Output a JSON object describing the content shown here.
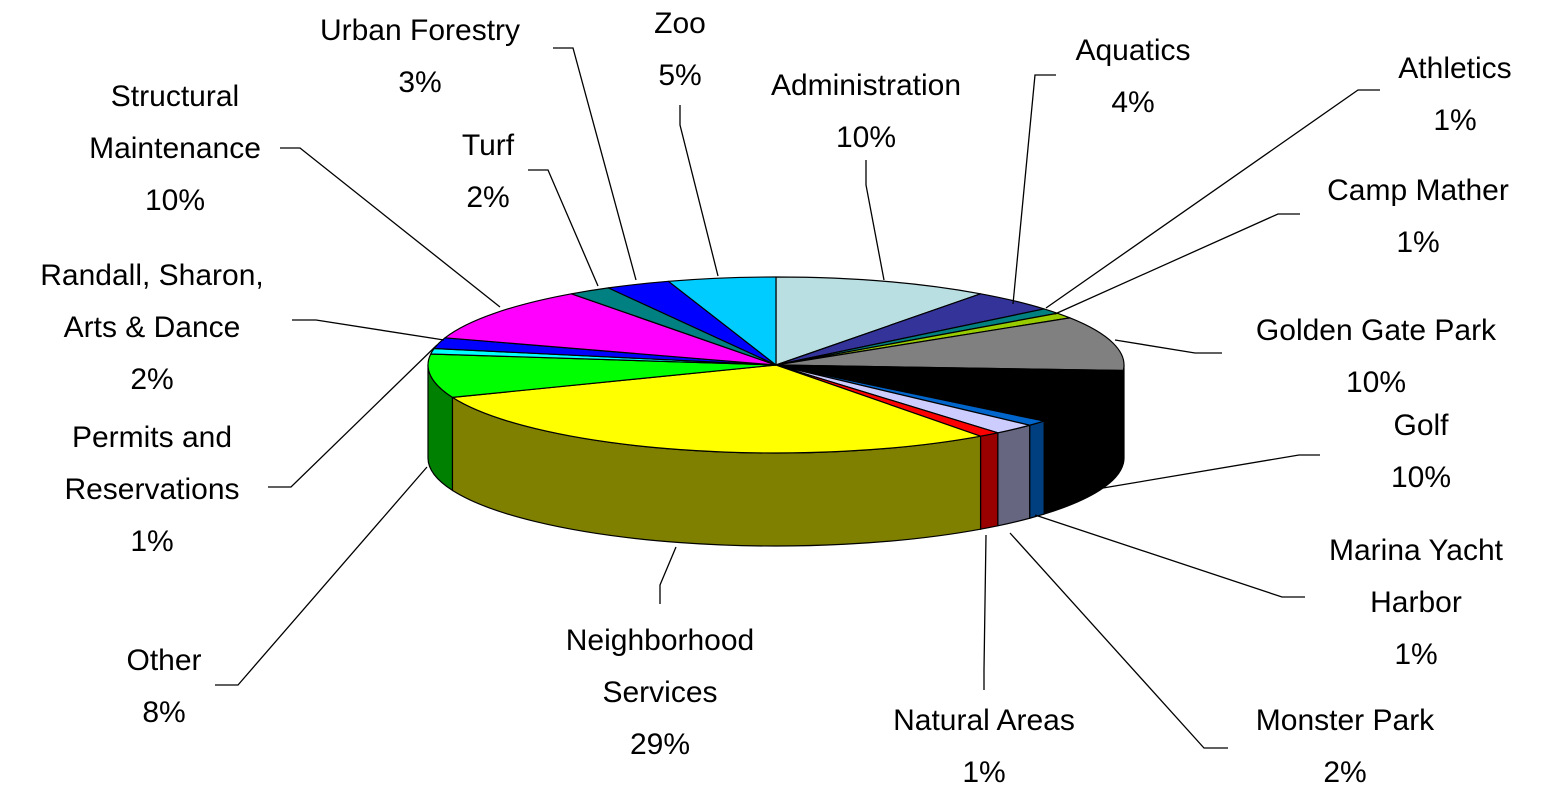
{
  "chart_data": {
    "type": "pie",
    "title": "",
    "three_d": true,
    "slices": [
      {
        "label": [
          "Administration"
        ],
        "pct_label": "10%",
        "value": 10,
        "color": "#B9DFE3",
        "side": "#7BA3A8"
      },
      {
        "label": [
          "Aquatics"
        ],
        "pct_label": "4%",
        "value": 4,
        "color": "#333399",
        "side": "#1F1F66"
      },
      {
        "label": [
          "Athletics"
        ],
        "pct_label": "1%",
        "value": 1,
        "color": "#008080",
        "side": "#005252"
      },
      {
        "label": [
          "Camp Mather"
        ],
        "pct_label": "1%",
        "value": 1,
        "color": "#99CC00",
        "side": "#6F9400"
      },
      {
        "label": [
          "Golden Gate Park"
        ],
        "pct_label": "10%",
        "value": 10,
        "color": "#808080",
        "side": "#5A5A5A"
      },
      {
        "label": [
          "Golf"
        ],
        "pct_label": "10%",
        "value": 10,
        "color": "#000000",
        "side": "#000000"
      },
      {
        "label": [
          "Marina Yacht",
          "Harbor"
        ],
        "pct_label": "1%",
        "value": 1,
        "color": "#0066CC",
        "side": "#003F7F"
      },
      {
        "label": [
          "Monster Park"
        ],
        "pct_label": "2%",
        "value": 2,
        "color": "#CCCCFF",
        "side": "#666680"
      },
      {
        "label": [
          "Natural Areas"
        ],
        "pct_label": "1%",
        "value": 1,
        "color": "#FF0000",
        "side": "#990000"
      },
      {
        "label": [
          "Neighborhood",
          "Services"
        ],
        "pct_label": "29%",
        "value": 29,
        "color": "#FFFF00",
        "side": "#808000"
      },
      {
        "label": [
          "Other"
        ],
        "pct_label": "8%",
        "value": 8,
        "color": "#00FF00",
        "side": "#008000"
      },
      {
        "label": [
          "Permits and",
          "Reservations"
        ],
        "pct_label": "1%",
        "value": 1,
        "color": "#00FFFF",
        "side": "#009999"
      },
      {
        "label": [
          "Randall, Sharon,",
          "Arts & Dance"
        ],
        "pct_label": "2%",
        "value": 2,
        "color": "#0000FF",
        "side": "#000099"
      },
      {
        "label": [
          "Structural",
          "Maintenance"
        ],
        "pct_label": "10%",
        "value": 10,
        "color": "#FF00FF",
        "side": "#990099"
      },
      {
        "label": [
          "Turf"
        ],
        "pct_label": "2%",
        "value": 2,
        "color": "#008080",
        "side": "#005252"
      },
      {
        "label": [
          "Urban Forestry"
        ],
        "pct_label": "3%",
        "value": 3,
        "color": "#0000FF",
        "side": "#000099"
      },
      {
        "label": [
          "Zoo"
        ],
        "pct_label": "5%",
        "value": 5,
        "color": "#00CCFF",
        "side": "#0088AA"
      }
    ],
    "legend": "none"
  }
}
